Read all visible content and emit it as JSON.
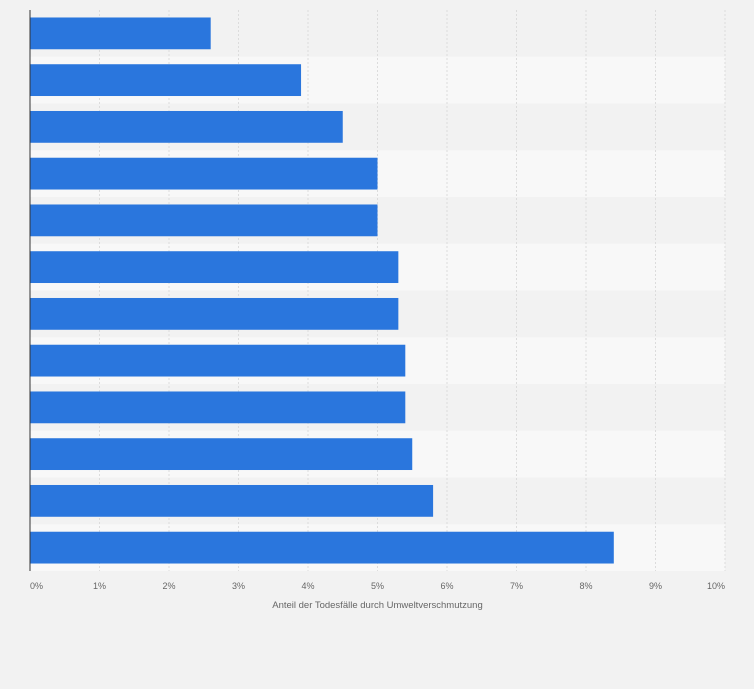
{
  "chart_data": {
    "type": "bar",
    "orientation": "horizontal",
    "categories": [
      "",
      "",
      "",
      "",
      "",
      "",
      "",
      "",
      "",
      "",
      "",
      ""
    ],
    "values": [
      2.6,
      3.9,
      4.5,
      5.0,
      5.0,
      5.3,
      5.3,
      5.4,
      5.4,
      5.5,
      5.8,
      8.4
    ],
    "xlabel": "Anteil der Todesfälle durch Umweltverschmutzung",
    "ylabel": "",
    "xlim": [
      0,
      10
    ],
    "tick_labels": [
      "0%",
      "1%",
      "2%",
      "3%",
      "4%",
      "5%",
      "6%",
      "7%",
      "8%",
      "9%",
      "10%"
    ],
    "grid": true,
    "colors": {
      "bar": "#2a76dd",
      "band_dark": "#f2f2f2",
      "band_light": "#f8f8f8",
      "grid": "#dcdcdc",
      "axis": "#333333",
      "text": "#666666"
    }
  }
}
